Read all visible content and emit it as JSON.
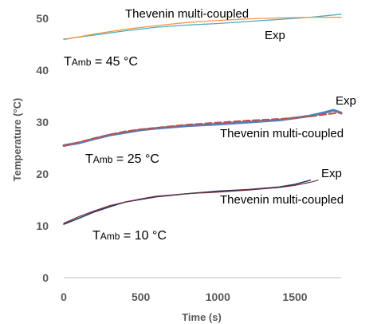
{
  "chart_data": {
    "type": "line",
    "xlabel": "Time (s)",
    "ylabel": "Temperature (°C)",
    "xlim": [
      0,
      1800
    ],
    "ylim": [
      0,
      50
    ],
    "x_ticks": [
      0,
      500,
      1000,
      1500
    ],
    "y_ticks": [
      0,
      10,
      20,
      30,
      40,
      50
    ],
    "grid": false,
    "legend": "none",
    "colors": {
      "exp_45": "#4bacc6",
      "model_45": "#f79646",
      "exp_25": "#4f81bd",
      "model_25": "#c0504d",
      "exp_10": "#1f3864",
      "model_10": "#7b2d3b",
      "axis": "#bfbfbf"
    },
    "series": [
      {
        "key": "exp_45",
        "style": "solid",
        "width": 1.3,
        "x": [
          0,
          200,
          400,
          600,
          800,
          1000,
          1200,
          1400,
          1600,
          1800
        ],
        "y": [
          46.0,
          46.8,
          47.6,
          48.3,
          48.7,
          49.0,
          49.4,
          49.8,
          50.2,
          50.8
        ]
      },
      {
        "key": "model_45",
        "style": "solid",
        "width": 1.3,
        "x": [
          0,
          200,
          400,
          600,
          800,
          1000,
          1200,
          1400,
          1600,
          1800
        ],
        "y": [
          45.9,
          47.0,
          47.9,
          48.6,
          49.2,
          49.6,
          49.9,
          50.1,
          50.2,
          50.2
        ]
      },
      {
        "key": "exp_25",
        "style": "solid",
        "width": 3.2,
        "x": [
          0,
          100,
          200,
          300,
          400,
          500,
          600,
          800,
          1000,
          1200,
          1400,
          1500,
          1600,
          1700,
          1750,
          1780,
          1800
        ],
        "y": [
          25.5,
          26.0,
          26.8,
          27.5,
          28.0,
          28.5,
          28.8,
          29.3,
          29.6,
          30.0,
          30.4,
          30.8,
          31.2,
          31.9,
          32.3,
          32.0,
          31.7
        ]
      },
      {
        "key": "model_25",
        "style": "dashed",
        "width": 2.2,
        "x": [
          0,
          100,
          200,
          300,
          400,
          500,
          600,
          800,
          1000,
          1200,
          1400,
          1500,
          1600,
          1700,
          1800
        ],
        "y": [
          25.4,
          26.1,
          26.9,
          27.6,
          28.2,
          28.6,
          28.9,
          29.5,
          29.9,
          30.3,
          30.6,
          30.8,
          31.1,
          31.5,
          31.9
        ]
      },
      {
        "key": "exp_10",
        "style": "solid",
        "width": 1.5,
        "x": [
          0,
          100,
          200,
          300,
          400,
          500,
          600,
          800,
          1000,
          1200,
          1400,
          1500,
          1600
        ],
        "y": [
          10.3,
          11.5,
          12.7,
          13.7,
          14.6,
          15.1,
          15.6,
          16.2,
          16.7,
          17.0,
          17.5,
          18.0,
          18.8
        ]
      },
      {
        "key": "model_10",
        "style": "solid",
        "width": 1.2,
        "x": [
          0,
          100,
          200,
          300,
          400,
          500,
          600,
          800,
          1000,
          1200,
          1400,
          1500,
          1600,
          1650
        ],
        "y": [
          10.5,
          11.8,
          12.9,
          13.9,
          14.6,
          15.2,
          15.7,
          16.2,
          16.5,
          16.9,
          17.4,
          17.8,
          18.4,
          18.8
        ]
      }
    ],
    "annotations": [
      {
        "key": "t45_model",
        "text": "Thevenin multi-coupled"
      },
      {
        "key": "t45_exp",
        "text": "Exp"
      },
      {
        "key": "t25_exp",
        "text": "Exp"
      },
      {
        "key": "t25_model",
        "text": "Thevenin multi-coupled"
      },
      {
        "key": "t10_exp",
        "text": "Exp"
      },
      {
        "key": "t10_model",
        "text": "Thevenin multi-coupled"
      }
    ],
    "ambient_labels": [
      {
        "key": "amb45",
        "prefix": "T",
        "sub": "Amb",
        "suffix": " = 45 °C"
      },
      {
        "key": "amb25",
        "prefix": "T",
        "sub": "Amb",
        "suffix": " = 25 °C"
      },
      {
        "key": "amb10",
        "prefix": "T",
        "sub": "Amb",
        "suffix": " = 10 °C"
      }
    ]
  }
}
